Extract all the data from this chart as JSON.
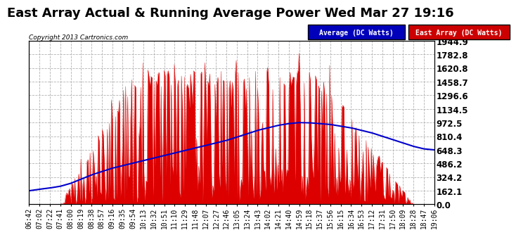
{
  "title": "East Array Actual & Running Average Power Wed Mar 27 19:16",
  "copyright": "Copyright 2013 Cartronics.com",
  "ylabel_right_ticks": [
    0.0,
    162.1,
    324.2,
    486.2,
    648.3,
    810.4,
    972.5,
    1134.5,
    1296.6,
    1458.7,
    1620.8,
    1782.8,
    1944.9
  ],
  "ymax": 1944.9,
  "ymin": 0.0,
  "legend_labels": [
    "Average (DC Watts)",
    "East Array (DC Watts)"
  ],
  "legend_colors": [
    "#0000bb",
    "#cc0000"
  ],
  "bg_color": "#ffffff",
  "plot_bg_color": "#ffffff",
  "grid_color": "#aaaaaa",
  "bar_color": "#dd0000",
  "line_color": "#0000cc",
  "title_fontsize": 13,
  "tick_label_fontsize": 7,
  "x_tick_labels": [
    "06:42",
    "07:02",
    "07:22",
    "07:41",
    "08:00",
    "08:19",
    "08:38",
    "08:57",
    "09:16",
    "09:35",
    "09:54",
    "10:13",
    "10:32",
    "10:51",
    "11:10",
    "11:29",
    "11:48",
    "12:07",
    "12:27",
    "12:46",
    "13:05",
    "13:24",
    "13:43",
    "14:02",
    "14:21",
    "14:40",
    "14:59",
    "15:18",
    "15:37",
    "15:56",
    "16:15",
    "16:34",
    "16:53",
    "17:12",
    "17:31",
    "17:50",
    "18:09",
    "18:28",
    "18:47",
    "19:06"
  ],
  "avg_line_points": [
    162,
    180,
    195,
    215,
    250,
    300,
    350,
    390,
    430,
    460,
    490,
    520,
    550,
    580,
    610,
    640,
    670,
    700,
    730,
    760,
    800,
    840,
    880,
    910,
    940,
    960,
    972,
    970,
    960,
    950,
    930,
    910,
    880,
    850,
    810,
    770,
    730,
    690,
    660,
    648
  ]
}
